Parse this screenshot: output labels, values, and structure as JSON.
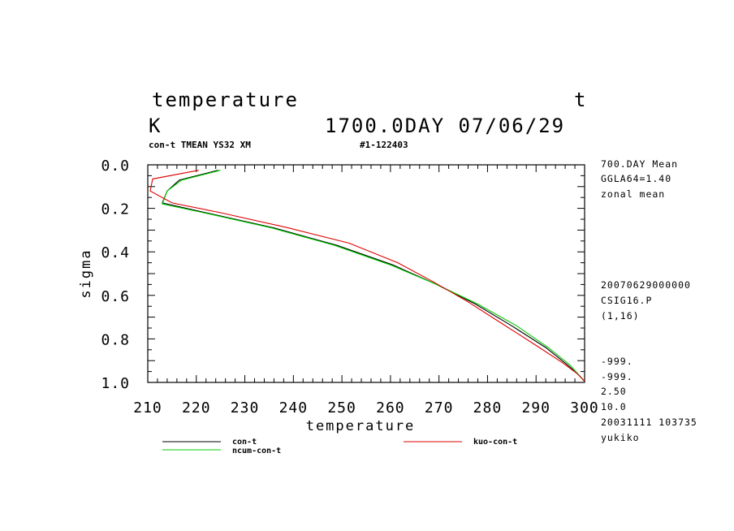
{
  "header": {
    "title": "temperature",
    "var_code": "t",
    "units": "K",
    "datetime": "1700.0DAY 07/06/29",
    "subtitle_left": "con-t TMEAN YS32 XM",
    "subtitle_right": "#1-122403"
  },
  "side_info": {
    "top": [
      "700.DAY Mean",
      "GGLA64=1.40",
      "zonal mean"
    ],
    "middle": [
      "20070629000000",
      "CSIG16.P",
      "(1,16)"
    ],
    "bottom": [
      "-999.",
      "-999.",
      "2.50",
      "10.0",
      "20031111 103735",
      "yukiko"
    ]
  },
  "legend": [
    {
      "label": "con-t",
      "color": "#000000"
    },
    {
      "label": "ncum-con-t",
      "color": "#00cc00"
    },
    {
      "label": "kuo-con-t",
      "color": "#dd0000"
    }
  ],
  "chart_data": {
    "type": "line",
    "xlabel": "temperature",
    "ylabel": "sigma",
    "xlim": [
      210,
      300
    ],
    "ylim": [
      0.0,
      1.0
    ],
    "y_inverted": true,
    "xticks": [
      210,
      220,
      230,
      240,
      250,
      260,
      270,
      280,
      290,
      300
    ],
    "yticks": [
      "0.0",
      "0.2",
      "0.4",
      "0.6",
      "0.8",
      "1.0"
    ],
    "grid": false,
    "series": [
      {
        "name": "con-t",
        "color": "#000000",
        "x": [
          224.5,
          216.5,
          214.0,
          213.0,
          222.0,
          236.0,
          249.0,
          260.5,
          269.5,
          277.5,
          285.0,
          292.0,
          296.5,
          299.0,
          300.0
        ],
        "y": [
          0.025,
          0.07,
          0.12,
          0.175,
          0.22,
          0.29,
          0.37,
          0.46,
          0.55,
          0.64,
          0.74,
          0.84,
          0.92,
          0.97,
          0.995
        ]
      },
      {
        "name": "ncum-con-t",
        "color": "#00cc00",
        "x": [
          225.0,
          217.0,
          214.0,
          213.0,
          221.5,
          235.5,
          248.5,
          260.0,
          269.5,
          278.0,
          286.0,
          292.5,
          297.0,
          299.0,
          300.0
        ],
        "y": [
          0.025,
          0.07,
          0.12,
          0.18,
          0.22,
          0.29,
          0.37,
          0.46,
          0.55,
          0.64,
          0.74,
          0.84,
          0.92,
          0.97,
          0.995
        ]
      },
      {
        "name": "kuo-con-t",
        "color": "#dd0000",
        "x": [
          220.5,
          211.0,
          210.5,
          215.0,
          225.0,
          239.0,
          251.5,
          261.5,
          269.0,
          276.0,
          283.0,
          290.0,
          295.5,
          298.5,
          300.0
        ],
        "y": [
          0.025,
          0.065,
          0.12,
          0.175,
          0.22,
          0.29,
          0.36,
          0.45,
          0.54,
          0.63,
          0.73,
          0.83,
          0.91,
          0.96,
          0.995
        ]
      }
    ]
  }
}
